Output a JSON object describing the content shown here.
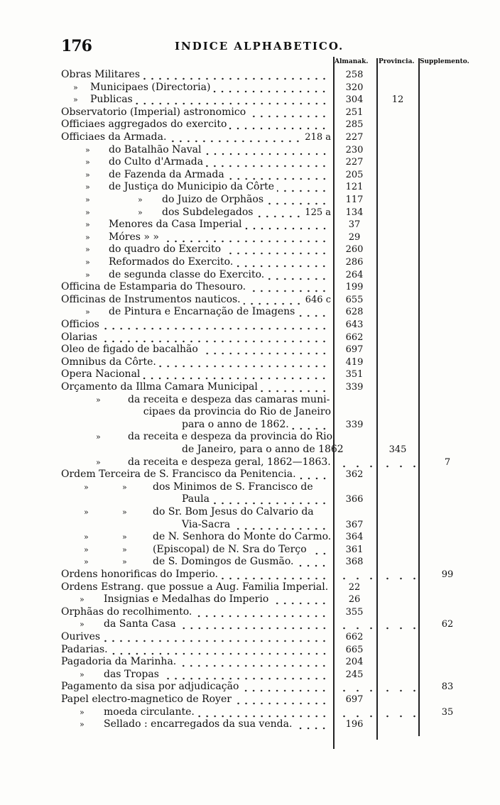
{
  "header": {
    "page_number": "176",
    "title": "INDICE ALPHABETICO."
  },
  "columns": {
    "almanak": "Almanak.",
    "provincia": "Provincia.",
    "supplemento": "Supplemento."
  },
  "rows": [
    {
      "form": "main",
      "text": "Obras Militares",
      "alm": "258"
    },
    {
      "form": "obras",
      "m1": "»",
      "text": "Municipaes (Directoria)",
      "alm": "320"
    },
    {
      "form": "obras",
      "m1": "»",
      "text": "Publicas",
      "alm": "304",
      "prov": "12"
    },
    {
      "form": "main",
      "text": "Observatorio (Imperial) astronomico",
      "alm": "251"
    },
    {
      "form": "main",
      "text": "Officiaes aggregados do exercito",
      "alm": "285"
    },
    {
      "form": "main",
      "text": "Officiaes da Armada.",
      "ref": "218 a",
      "alm": "227"
    },
    {
      "form": "off",
      "m1": "»",
      "text": "do Batalhão Naval",
      "alm": "230"
    },
    {
      "form": "off",
      "m1": "»",
      "text": "do Culto d'Armada",
      "alm": "227"
    },
    {
      "form": "off",
      "m1": "»",
      "text": "de Fazenda da Armada",
      "alm": "205"
    },
    {
      "form": "off",
      "m1": "»",
      "text": "de Justiça do Municipio da Côrte",
      "alm": "121"
    },
    {
      "form": "off2",
      "m1": "»",
      "m2": "»",
      "text": "do Juizo de Orphãos",
      "alm": "117"
    },
    {
      "form": "off2",
      "m1": "»",
      "m2": "»",
      "text": "dos Subdelegados",
      "ref": "125 a",
      "alm": "134"
    },
    {
      "form": "off",
      "m1": "»",
      "text": "Menores da Casa Imperial",
      "alm": "37"
    },
    {
      "form": "off",
      "m1": "»",
      "text": "Móres      »           »",
      "alm": "29"
    },
    {
      "form": "off",
      "m1": "»",
      "text": "do quadro do Exercito",
      "alm": "260"
    },
    {
      "form": "off",
      "m1": "»",
      "text": "Reformados do Exercito.",
      "alm": "286"
    },
    {
      "form": "off",
      "m1": "»",
      "text": "de segunda classe do Exercito.",
      "alm": "264"
    },
    {
      "form": "main",
      "text": "Officina de Estamparia do Thesouro.",
      "alm": "199"
    },
    {
      "form": "main",
      "text": "Officinas de Instrumentos nauticos.",
      "ref": "646 c",
      "alm": "655"
    },
    {
      "form": "off",
      "m1": "»",
      "text": "de Pintura e Encarnação de Imagens",
      "alm": "628"
    },
    {
      "form": "main",
      "text": "Officios",
      "alm": "643"
    },
    {
      "form": "main",
      "text": "Olarias",
      "alm": "662"
    },
    {
      "form": "main",
      "text": "Oleo de figado de bacalhão",
      "alm": "697"
    },
    {
      "form": "main",
      "text": "Omnibus da Côrte.",
      "alm": "419"
    },
    {
      "form": "main",
      "text": "Opera Nacional",
      "alm": "351"
    },
    {
      "form": "main",
      "text": "Orçamento da Illma Camara Municipal",
      "alm": "339"
    },
    {
      "form": "orc nolead",
      "m1": "»",
      "text": "da receita e despeza das camaras muni-"
    },
    {
      "form": "cont nolead",
      "text": "cipaes da provincia do Rio de Janeiro"
    },
    {
      "form": "ordcont",
      "text": "para o anno de 1862.",
      "alm": "339"
    },
    {
      "form": "orc nolead",
      "m1": "»",
      "text": "da receita e despeza da provincia do Rio"
    },
    {
      "form": "ordcont",
      "text": "de Janeiro, para o anno de 1862",
      "prov": "345"
    },
    {
      "form": "orc nolead",
      "m1": "»",
      "text": "da receita e despeza geral, 1862—1863.",
      "supp": "7"
    },
    {
      "form": "main",
      "text": "Ordem Terceira de S. Francisco da Penitencia.",
      "alm": "362"
    },
    {
      "form": "ord nolead",
      "m1": "»",
      "m2": "»",
      "text": "dos Minimos de S. Francisco de"
    },
    {
      "form": "ordcont",
      "text": "Paula",
      "alm": "366"
    },
    {
      "form": "ord nolead",
      "m1": "»",
      "m2": "»",
      "text": "do Sr. Bom Jesus do Calvario da"
    },
    {
      "form": "ordcont",
      "text": "Via-Sacra",
      "alm": "367"
    },
    {
      "form": "ord nolead",
      "m1": "»",
      "m2": "»",
      "text": "de N. Senhora do Monte do Carmo.",
      "alm": "364"
    },
    {
      "form": "ord",
      "m1": "»",
      "m2": "»",
      "text": "(Episcopal) de N. Sra do Terço",
      "alm": "361"
    },
    {
      "form": "ord",
      "m1": "»",
      "m2": "»",
      "text": "de S. Domingos de Gusmão.",
      "alm": "368"
    },
    {
      "form": "main",
      "text": "Ordens honorificas do Imperio.",
      "supp": "99"
    },
    {
      "form": "main nolead",
      "text": "Ordens Estrang. que possue a Aug. Familia Imperial.",
      "alm": "22"
    },
    {
      "form": "p1",
      "m1": "»",
      "text": "Insignias e Medalhas do Imperio",
      "alm": "26"
    },
    {
      "form": "main",
      "text": "Orphãas do recolhimento.",
      "alm": "355"
    },
    {
      "form": "p1",
      "m1": "»",
      "text": "da Santa Casa",
      "supp": "62"
    },
    {
      "form": "main",
      "text": "Ourives",
      "alm": "662"
    },
    {
      "form": "main",
      "text": "Padarias.",
      "alm": "665"
    },
    {
      "form": "main",
      "text": "Pagadoria da Marinha.",
      "alm": "204"
    },
    {
      "form": "p1",
      "m1": "»",
      "text": "das Tropas",
      "alm": "245"
    },
    {
      "form": "main",
      "text": "Pagamento da sisa por adjudicação",
      "supp": "83"
    },
    {
      "form": "main",
      "text": "Papel electro-magnetico de Royer",
      "alm": "697"
    },
    {
      "form": "p1",
      "m1": "»",
      "text": "moeda circulante.",
      "supp": "35"
    },
    {
      "form": "p1",
      "m1": "»",
      "text": "Sellado : encarregados da sua venda.",
      "alm": "196"
    }
  ]
}
